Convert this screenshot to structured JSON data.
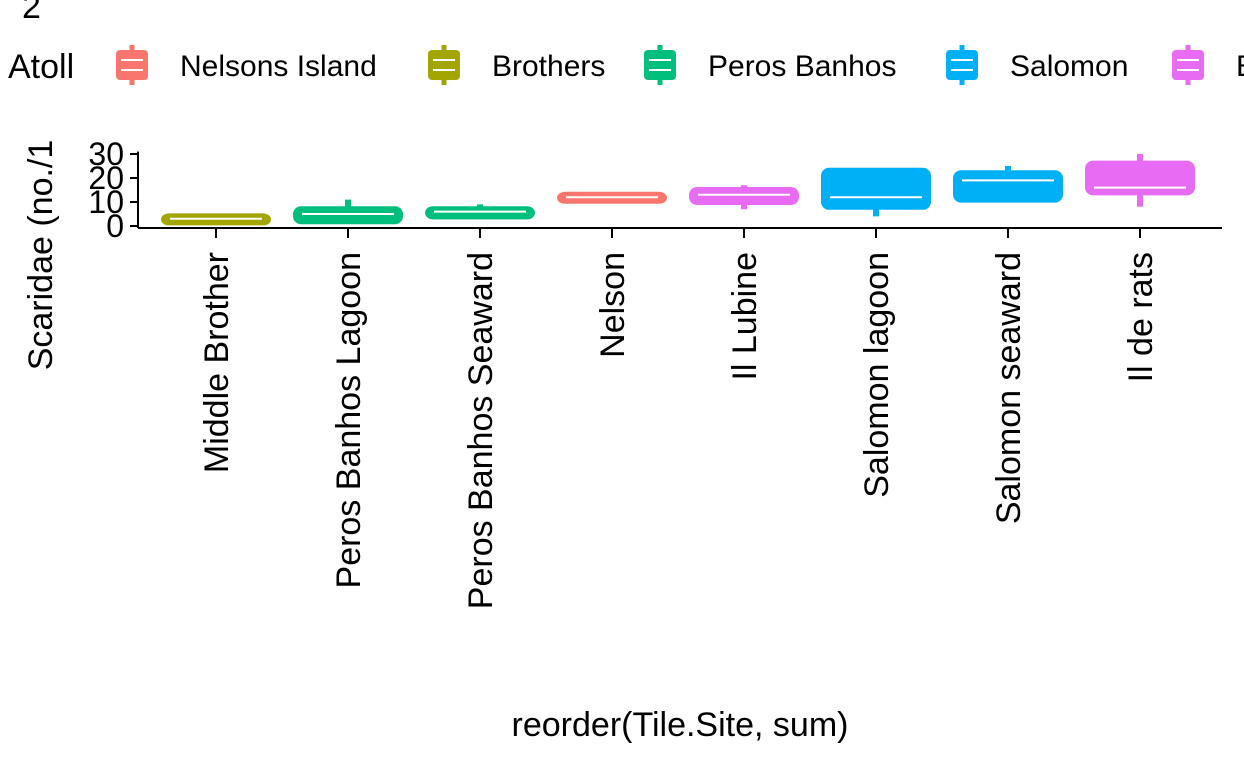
{
  "chart_data": {
    "type": "boxplot",
    "title_fragment": "2",
    "xlabel": "reorder(Tile.Site, sum)",
    "ylabel": "Scaridae (no./1",
    "yticks": [
      0,
      10,
      20,
      30
    ],
    "ylim": [
      -1,
      31
    ],
    "grid": false,
    "legend": {
      "title": "Atoll",
      "position": "top",
      "entries": [
        {
          "name": "Nelsons Island",
          "color": "#F8766D"
        },
        {
          "name": "Brothers",
          "color": "#A3A500"
        },
        {
          "name": "Peros Banhos",
          "color": "#00BF7D"
        },
        {
          "name": "Salomon",
          "color": "#00B0F6"
        },
        {
          "name": "B",
          "color": "#E76BF3"
        }
      ]
    },
    "categories": [
      "Middle Brother",
      "Peros Banhos Lagoon",
      "Peros Banhos Seaward",
      "Nelson",
      "Il Lubine",
      "Salomon lagoon",
      "Salomon seaward",
      "Il de rats"
    ],
    "boxes": [
      {
        "site": "Middle Brother",
        "atoll": "Brothers",
        "color": "#A3A500",
        "whisker_low": 2,
        "q1": 2,
        "median": 3,
        "q3": 4,
        "whisker_high": 5
      },
      {
        "site": "Peros Banhos Lagoon",
        "atoll": "Peros Banhos",
        "color": "#00BF7D",
        "whisker_low": 1,
        "q1": 2,
        "median": 5,
        "q3": 7,
        "whisker_high": 11
      },
      {
        "site": "Peros Banhos Seaward",
        "atoll": "Peros Banhos",
        "color": "#00BF7D",
        "whisker_low": 3,
        "q1": 4,
        "median": 6,
        "q3": 7,
        "whisker_high": 9
      },
      {
        "site": "Nelson",
        "atoll": "Nelsons Island",
        "color": "#F8766D",
        "whisker_low": 10,
        "q1": 11,
        "median": 12,
        "q3": 13,
        "whisker_high": 14
      },
      {
        "site": "Il Lubine",
        "atoll": "B",
        "color": "#E76BF3",
        "whisker_low": 7,
        "q1": 10,
        "median": 13,
        "q3": 15,
        "whisker_high": 17
      },
      {
        "site": "Salomon lagoon",
        "atoll": "Salomon",
        "color": "#00B0F6",
        "whisker_low": 4,
        "q1": 8,
        "median": 12,
        "q3": 23,
        "whisker_high": 23
      },
      {
        "site": "Salomon seaward",
        "atoll": "Salomon",
        "color": "#00B0F6",
        "whisker_low": 10,
        "q1": 11,
        "median": 19,
        "q3": 22,
        "whisker_high": 25
      },
      {
        "site": "Il de rats",
        "atoll": "B",
        "color": "#E76BF3",
        "whisker_low": 8,
        "q1": 14,
        "median": 16,
        "q3": 26,
        "whisker_high": 30
      }
    ]
  }
}
